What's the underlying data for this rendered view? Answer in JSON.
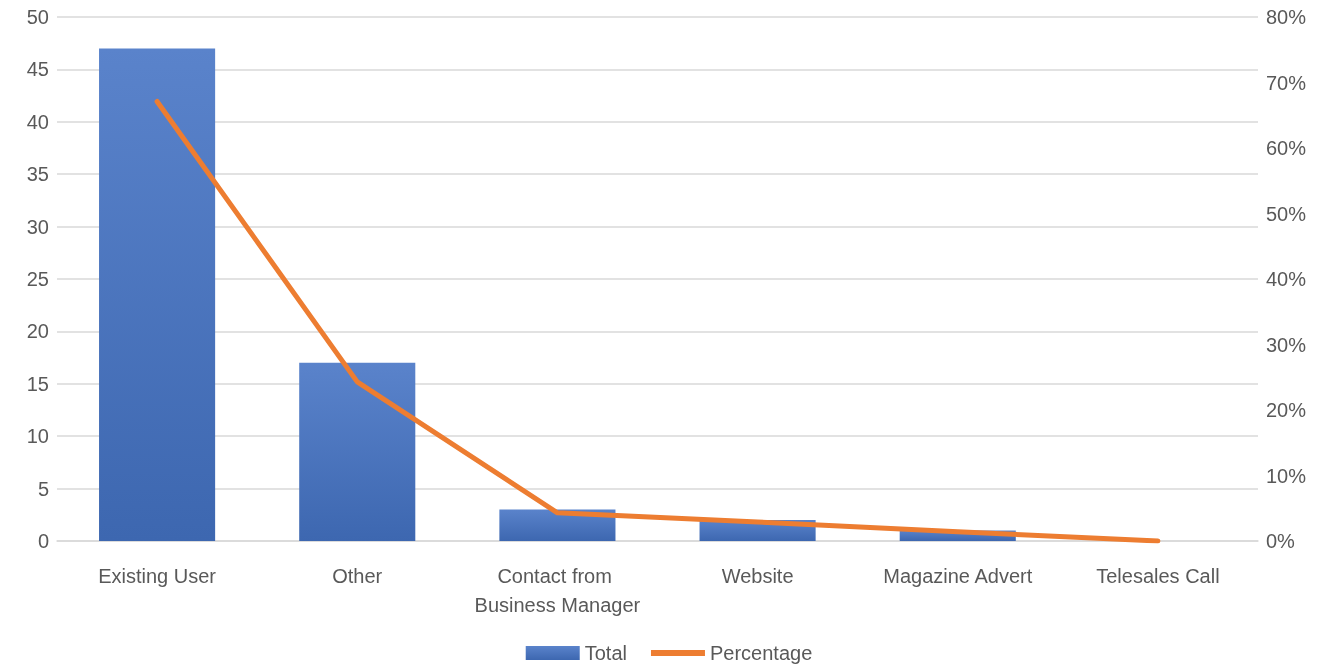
{
  "chart_data": {
    "type": "bar",
    "categories": [
      "Existing User",
      "Other",
      "Contact from Business Manager",
      "Website",
      "Magazine Advert",
      "Telesales Call"
    ],
    "series": [
      {
        "name": "Total",
        "color": "#4472c4",
        "values": [
          47,
          17,
          3,
          2,
          1,
          0
        ]
      },
      {
        "name": "Percentage",
        "type": "line",
        "axis": "y2",
        "color": "#ed7d31",
        "values": [
          67.1,
          24.3,
          4.3,
          2.9,
          1.4,
          0
        ]
      }
    ],
    "ylim": [
      0,
      50
    ],
    "yticks": [
      0,
      5,
      10,
      15,
      20,
      25,
      30,
      35,
      40,
      45,
      50
    ],
    "y2lim": [
      0,
      80
    ],
    "y2ticks": [
      {
        "value": 0,
        "label": "0%"
      },
      {
        "value": 10,
        "label": "10%"
      },
      {
        "value": 20,
        "label": "20%"
      },
      {
        "value": 30,
        "label": "30%"
      },
      {
        "value": 40,
        "label": "40%"
      },
      {
        "value": 50,
        "label": "50%"
      },
      {
        "value": 60,
        "label": "60%"
      },
      {
        "value": 70,
        "label": "70%"
      },
      {
        "value": 80,
        "label": "80%"
      }
    ],
    "grid": "y",
    "legend": "bottom",
    "marker": "none",
    "line_style": "solid"
  }
}
